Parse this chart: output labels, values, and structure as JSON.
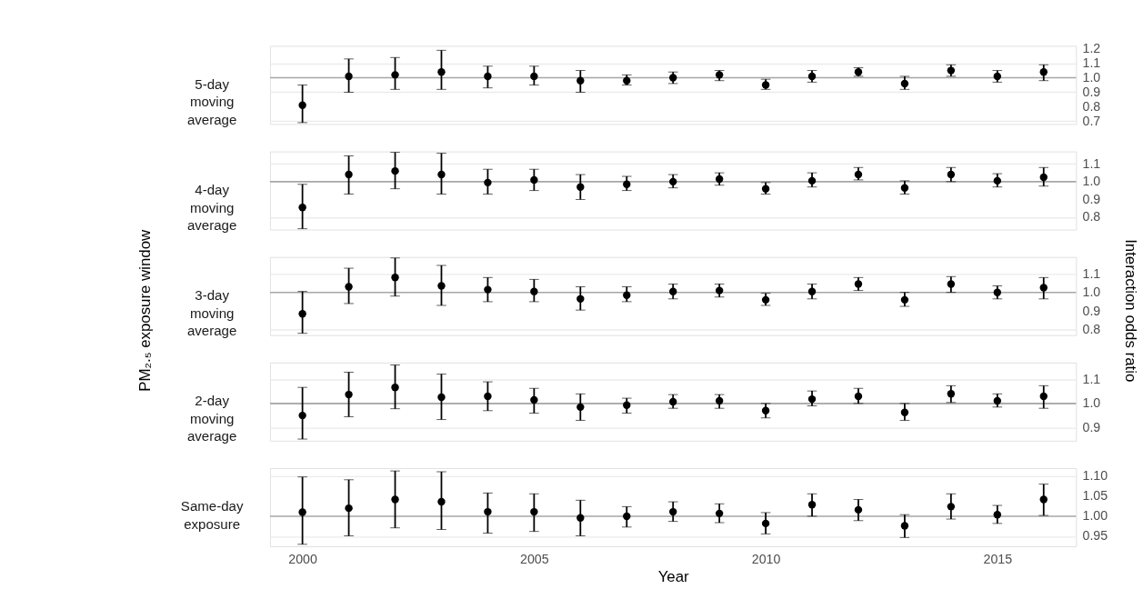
{
  "chart_data": [
    {
      "type": "scatter",
      "title": "5-day moving average",
      "x": [
        2000,
        2001,
        2002,
        2003,
        2004,
        2005,
        2006,
        2007,
        2008,
        2009,
        2010,
        2011,
        2012,
        2013,
        2014,
        2015,
        2016
      ],
      "xlim": [
        1999.3,
        2016.7
      ],
      "ylim": [
        0.68,
        1.22
      ],
      "yticks": [
        {
          "value": 0.7,
          "label": "0.7"
        },
        {
          "value": 0.8,
          "label": "0.8"
        },
        {
          "value": 0.9,
          "label": "0.9"
        },
        {
          "value": 1.0,
          "label": "1.0"
        },
        {
          "value": 1.1,
          "label": "1.1"
        },
        {
          "value": 1.2,
          "label": "1.2"
        }
      ],
      "grid": "y",
      "tick_labels": "y",
      "marker": "circle",
      "ref_lines": [
        {
          "axis": "y",
          "value": 1.0,
          "color": "#a6a6a6"
        }
      ],
      "series": [
        {
          "color": "#000000",
          "values": [
            0.81,
            1.01,
            1.02,
            1.04,
            1.01,
            1.01,
            0.98,
            0.98,
            1.0,
            1.02,
            0.95,
            1.01,
            1.04,
            0.96,
            1.05,
            1.01,
            1.04
          ],
          "errors": [
            [
              0.69,
              0.95
            ],
            [
              0.9,
              1.13
            ],
            [
              0.92,
              1.14
            ],
            [
              0.92,
              1.19
            ],
            [
              0.93,
              1.08
            ],
            [
              0.95,
              1.08
            ],
            [
              0.9,
              1.05
            ],
            [
              0.95,
              1.02
            ],
            [
              0.96,
              1.04
            ],
            [
              0.98,
              1.05
            ],
            [
              0.92,
              0.99
            ],
            [
              0.97,
              1.05
            ],
            [
              1.01,
              1.07
            ],
            [
              0.92,
              1.01
            ],
            [
              1.01,
              1.09
            ],
            [
              0.97,
              1.05
            ],
            [
              0.98,
              1.09
            ]
          ]
        }
      ]
    },
    {
      "type": "scatter",
      "title": "4-day moving average",
      "x": [
        2000,
        2001,
        2002,
        2003,
        2004,
        2005,
        2006,
        2007,
        2008,
        2009,
        2010,
        2011,
        2012,
        2013,
        2014,
        2015,
        2016
      ],
      "xlim": [
        1999.3,
        2016.7
      ],
      "ylim": [
        0.73,
        1.17
      ],
      "yticks": [
        {
          "value": 0.8,
          "label": "0.8"
        },
        {
          "value": 0.9,
          "label": "0.9"
        },
        {
          "value": 1.0,
          "label": "1.0"
        },
        {
          "value": 1.1,
          "label": "1.1"
        }
      ],
      "grid": "y",
      "tick_labels": "y",
      "marker": "circle",
      "ref_lines": [
        {
          "axis": "y",
          "value": 1.0,
          "color": "#a6a6a6"
        }
      ],
      "series": [
        {
          "color": "#000000",
          "values": [
            0.855,
            1.04,
            1.06,
            1.04,
            0.995,
            1.01,
            0.97,
            0.985,
            1.0,
            1.015,
            0.96,
            1.005,
            1.04,
            0.965,
            1.04,
            1.005,
            1.025
          ],
          "errors": [
            [
              0.735,
              0.985
            ],
            [
              0.93,
              1.145
            ],
            [
              0.96,
              1.165
            ],
            [
              0.93,
              1.16
            ],
            [
              0.93,
              1.07
            ],
            [
              0.95,
              1.07
            ],
            [
              0.9,
              1.04
            ],
            [
              0.95,
              1.03
            ],
            [
              0.965,
              1.04
            ],
            [
              0.98,
              1.05
            ],
            [
              0.93,
              0.995
            ],
            [
              0.97,
              1.05
            ],
            [
              1.01,
              1.08
            ],
            [
              0.93,
              1.005
            ],
            [
              1.0,
              1.08
            ],
            [
              0.97,
              1.045
            ],
            [
              0.975,
              1.08
            ]
          ]
        }
      ]
    },
    {
      "type": "scatter",
      "title": "3-day moving average",
      "ylabel": "PM₂.₅ exposure window",
      "y2label": "Interaction odds ratio",
      "x": [
        2000,
        2001,
        2002,
        2003,
        2004,
        2005,
        2006,
        2007,
        2008,
        2009,
        2010,
        2011,
        2012,
        2013,
        2014,
        2015,
        2016
      ],
      "xlim": [
        1999.3,
        2016.7
      ],
      "ylim": [
        0.77,
        1.19
      ],
      "yticks": [
        {
          "value": 0.8,
          "label": "0.8"
        },
        {
          "value": 0.9,
          "label": "0.9"
        },
        {
          "value": 1.0,
          "label": "1.0"
        },
        {
          "value": 1.1,
          "label": "1.1"
        }
      ],
      "grid": "y",
      "tick_labels": "y",
      "marker": "circle",
      "ref_lines": [
        {
          "axis": "y",
          "value": 1.0,
          "color": "#a6a6a6"
        }
      ],
      "series": [
        {
          "color": "#000000",
          "values": [
            0.885,
            1.03,
            1.08,
            1.035,
            1.015,
            1.005,
            0.965,
            0.985,
            1.005,
            1.01,
            0.96,
            1.005,
            1.045,
            0.96,
            1.045,
            1.0,
            1.025
          ],
          "errors": [
            [
              0.78,
              1.005
            ],
            [
              0.94,
              1.13
            ],
            [
              0.98,
              1.185
            ],
            [
              0.93,
              1.145
            ],
            [
              0.95,
              1.08
            ],
            [
              0.95,
              1.07
            ],
            [
              0.905,
              1.03
            ],
            [
              0.95,
              1.03
            ],
            [
              0.965,
              1.045
            ],
            [
              0.975,
              1.045
            ],
            [
              0.93,
              0.995
            ],
            [
              0.965,
              1.045
            ],
            [
              1.01,
              1.08
            ],
            [
              0.925,
              1.0
            ],
            [
              1.0,
              1.085
            ],
            [
              0.965,
              1.035
            ],
            [
              0.965,
              1.08
            ]
          ]
        }
      ]
    },
    {
      "type": "scatter",
      "title": "2-day moving average",
      "x": [
        2000,
        2001,
        2002,
        2003,
        2004,
        2005,
        2006,
        2007,
        2008,
        2009,
        2010,
        2011,
        2012,
        2013,
        2014,
        2015,
        2016
      ],
      "xlim": [
        1999.3,
        2016.7
      ],
      "ylim": [
        0.845,
        1.17
      ],
      "yticks": [
        {
          "value": 0.9,
          "label": "0.9"
        },
        {
          "value": 1.0,
          "label": "1.0"
        },
        {
          "value": 1.1,
          "label": "1.1"
        }
      ],
      "grid": "y",
      "tick_labels": "y",
      "marker": "circle",
      "ref_lines": [
        {
          "axis": "y",
          "value": 1.0,
          "color": "#a6a6a6"
        }
      ],
      "series": [
        {
          "color": "#000000",
          "values": [
            0.95,
            1.037,
            1.067,
            1.026,
            1.03,
            1.015,
            0.985,
            0.993,
            1.007,
            1.011,
            0.97,
            1.018,
            1.03,
            0.963,
            1.04,
            1.011,
            1.03
          ],
          "errors": [
            [
              0.852,
              1.067
            ],
            [
              0.945,
              1.13
            ],
            [
              0.978,
              1.16
            ],
            [
              0.933,
              1.122
            ],
            [
              0.97,
              1.09
            ],
            [
              0.96,
              1.063
            ],
            [
              0.93,
              1.04
            ],
            [
              0.96,
              1.022
            ],
            [
              0.98,
              1.037
            ],
            [
              0.98,
              1.037
            ],
            [
              0.94,
              1.0
            ],
            [
              0.99,
              1.052
            ],
            [
              1.0,
              1.063
            ],
            [
              0.93,
              1.0
            ],
            [
              1.004,
              1.074
            ],
            [
              0.985,
              1.04
            ],
            [
              0.98,
              1.074
            ]
          ]
        }
      ]
    },
    {
      "type": "scatter",
      "title": "Same-day exposure",
      "xlabel": "Year",
      "x": [
        2000,
        2001,
        2002,
        2003,
        2004,
        2005,
        2006,
        2007,
        2008,
        2009,
        2010,
        2011,
        2012,
        2013,
        2014,
        2015,
        2016
      ],
      "xlim": [
        1999.3,
        2016.7
      ],
      "xticks": [
        2000,
        2005,
        2010,
        2015
      ],
      "ylim": [
        0.925,
        1.12
      ],
      "yticks": [
        {
          "value": 0.95,
          "label": "0.95"
        },
        {
          "value": 1.0,
          "label": "1.00"
        },
        {
          "value": 1.05,
          "label": "1.05"
        },
        {
          "value": 1.1,
          "label": "1.10"
        }
      ],
      "grid": "y",
      "marker": "circle",
      "ref_lines": [
        {
          "axis": "y",
          "value": 1.0,
          "color": "#a6a6a6"
        }
      ],
      "series": [
        {
          "color": "#000000",
          "values": [
            1.01,
            1.02,
            1.042,
            1.036,
            1.011,
            1.011,
            0.996,
            1.0,
            1.011,
            1.007,
            0.982,
            1.029,
            1.016,
            0.976,
            1.024,
            1.004,
            1.042
          ],
          "errors": [
            [
              0.93,
              1.098
            ],
            [
              0.951,
              1.091
            ],
            [
              0.971,
              1.113
            ],
            [
              0.967,
              1.111
            ],
            [
              0.958,
              1.058
            ],
            [
              0.962,
              1.056
            ],
            [
              0.951,
              1.04
            ],
            [
              0.973,
              1.024
            ],
            [
              0.987,
              1.036
            ],
            [
              0.984,
              1.031
            ],
            [
              0.956,
              1.009
            ],
            [
              1.0,
              1.056
            ],
            [
              0.989,
              1.042
            ],
            [
              0.947,
              1.004
            ],
            [
              0.993,
              1.056
            ],
            [
              0.982,
              1.027
            ],
            [
              1.002,
              1.08
            ]
          ]
        }
      ]
    }
  ]
}
